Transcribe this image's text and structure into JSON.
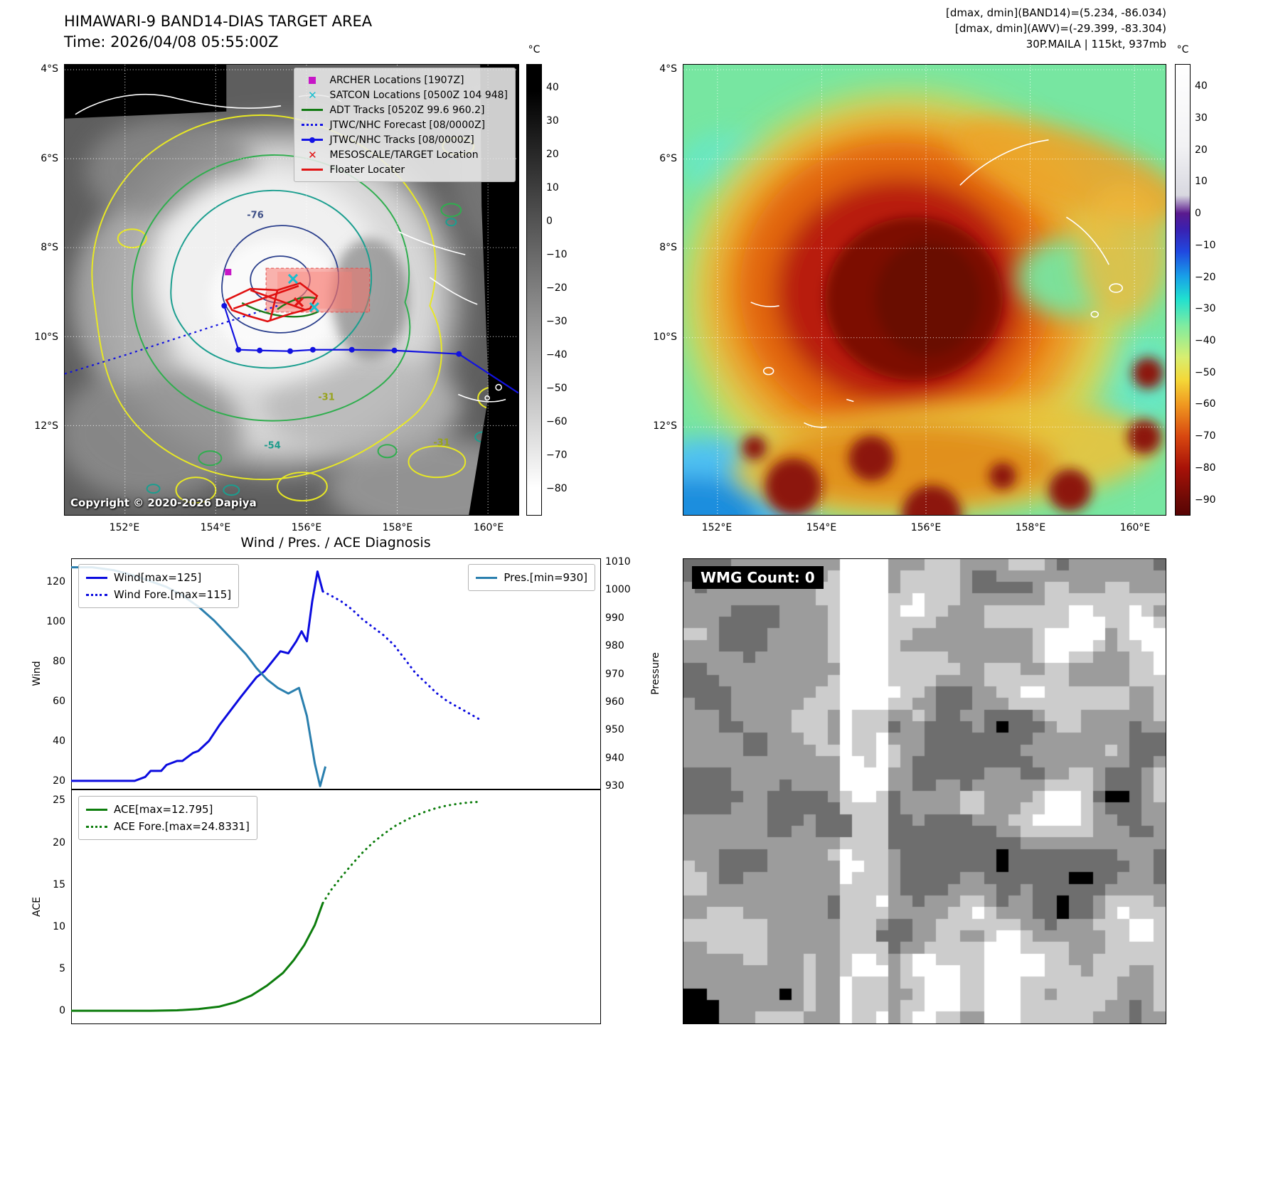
{
  "figure": {
    "band14": {
      "title": "HIMAWARI-9 BAND14-DIAS TARGET AREA",
      "time": "Time: 2026/04/08 05:55:00Z",
      "copyright": "Copyright © 2020-2026 Dapiya",
      "x_ticks": [
        "152°E",
        "154°E",
        "156°E",
        "158°E",
        "160°E"
      ],
      "y_ticks": [
        "4°S",
        "6°S",
        "8°S",
        "10°S",
        "12°S"
      ],
      "colorbar_unit": "°C",
      "colorbar_ticks": [
        40,
        30,
        20,
        10,
        0,
        -10,
        -20,
        -30,
        -40,
        -50,
        -60,
        -70,
        -80
      ],
      "legend": [
        {
          "label": "ARCHER Locations [1907Z]",
          "marker": "square",
          "color": "#c716c7"
        },
        {
          "label": "SATCON Locations [0500Z 104 948]",
          "marker": "x",
          "color": "#17becf"
        },
        {
          "label": "ADT Tracks [0520Z 99.6 960.2]",
          "marker": "line",
          "color": "#127a12"
        },
        {
          "label": "JTWC/NHC Forecast [08/0000Z]",
          "marker": "dotted",
          "color": "#1414e6"
        },
        {
          "label": "JTWC/NHC Tracks [08/0000Z]",
          "marker": "line-dot",
          "color": "#1414e6"
        },
        {
          "label": "MESOSCALE/TARGET Location",
          "marker": "x",
          "color": "#e01414"
        },
        {
          "label": "Floater Locater",
          "marker": "line",
          "color": "#e01414"
        }
      ],
      "contour_labels": [
        {
          "text": "-76",
          "color": "#3d4e86"
        },
        {
          "text": "-31",
          "color": "#97a31c"
        },
        {
          "text": "-54",
          "color": "#1f9c8c"
        },
        {
          "text": "-31",
          "color": "#97a31c"
        }
      ]
    },
    "awv": {
      "header": [
        "[dmax, dmin](BAND14)=(5.234, -86.034)",
        "[dmax, dmin](AWV)=(-29.399, -83.304)",
        "30P.MAILA | 115kt, 937mb"
      ],
      "x_ticks": [
        "152°E",
        "154°E",
        "156°E",
        "158°E",
        "160°E"
      ],
      "y_ticks": [
        "4°S",
        "6°S",
        "8°S",
        "10°S",
        "12°S"
      ],
      "colorbar_unit": "°C",
      "colorbar_ticks": [
        40,
        30,
        20,
        10,
        0,
        -10,
        -20,
        -30,
        -40,
        -50,
        -60,
        -70,
        -80,
        -90
      ]
    },
    "wmg": {
      "label": "WMG Count: 0"
    }
  },
  "chart_data": [
    {
      "type": "line",
      "title": "Wind / Pres. / ACE Diagnosis",
      "xlim": [
        0,
        100
      ],
      "grid": false,
      "legend_position": "upper left / upper right",
      "axes": {
        "left": {
          "label": "Wind",
          "range": [
            15.7,
            131.6
          ],
          "ticks": [
            20,
            40,
            60,
            80,
            100,
            120
          ]
        },
        "right": {
          "label": "Pressure",
          "range": [
            928.8,
            1011.2
          ],
          "ticks": [
            930,
            940,
            950,
            960,
            970,
            980,
            990,
            1000,
            1010
          ]
        }
      },
      "series": [
        {
          "name": "Wind[max=125]",
          "axis": "left",
          "color": "#0b0bdf",
          "style": "solid",
          "x": [
            0,
            12,
            14,
            15,
            17,
            18,
            20,
            21,
            23,
            24,
            26,
            28,
            30,
            32,
            33.5,
            35,
            36.5,
            38,
            39.5,
            41,
            42.5,
            43.5,
            44.5,
            45.5,
            46.5,
            47.5
          ],
          "y": [
            20,
            20,
            22,
            25,
            25,
            28,
            30,
            30,
            34,
            35,
            40,
            48,
            55,
            62,
            67,
            72,
            75,
            80,
            85,
            84,
            90,
            95,
            90,
            110,
            125,
            115
          ]
        },
        {
          "name": "Wind Fore.[max=115]",
          "axis": "left",
          "color": "#0b0bdf",
          "style": "dotted",
          "x": [
            47.5,
            49,
            51,
            53,
            55,
            57,
            59,
            61,
            63,
            65,
            67,
            69,
            71,
            73,
            75,
            77
          ],
          "y": [
            115,
            113,
            110,
            106,
            101,
            97,
            93,
            88,
            81,
            74,
            69,
            64,
            60,
            57,
            54,
            51
          ]
        },
        {
          "name": "Pres.[min=930]",
          "axis": "right",
          "color": "#2a7fae",
          "style": "solid",
          "x": [
            0,
            4,
            8,
            12,
            15,
            18,
            21,
            24,
            27,
            30,
            33,
            35,
            37,
            39,
            41,
            43,
            44.5,
            46,
            47,
            48
          ],
          "y": [
            1008,
            1008,
            1007,
            1005,
            1003,
            1001,
            998,
            994,
            989,
            983,
            977,
            972,
            968,
            965,
            963,
            965,
            955,
            938,
            930,
            937
          ]
        }
      ]
    },
    {
      "type": "line",
      "title": "",
      "xlim": [
        0,
        100
      ],
      "grid": false,
      "legend_position": "upper left",
      "axes": {
        "left": {
          "label": "ACE",
          "range": [
            -1.6,
            26.3
          ],
          "ticks": [
            0,
            5,
            10,
            15,
            20,
            25
          ]
        }
      },
      "series": [
        {
          "name": "ACE[max=12.795]",
          "axis": "left",
          "color": "#0d7d0d",
          "style": "solid",
          "x": [
            0,
            15,
            20,
            24,
            28,
            31,
            34,
            37,
            40,
            42,
            44,
            46,
            47.5
          ],
          "y": [
            0,
            0,
            0.05,
            0.2,
            0.5,
            1.0,
            1.8,
            3.0,
            4.5,
            6.0,
            7.8,
            10.2,
            12.795
          ]
        },
        {
          "name": "ACE Fore.[max=24.8331]",
          "axis": "left",
          "color": "#0d7d0d",
          "style": "dotted",
          "x": [
            47.5,
            49,
            51,
            53,
            55,
            57,
            59,
            61,
            63,
            65,
            67,
            69,
            71,
            73,
            75,
            77
          ],
          "y": [
            12.795,
            14.3,
            15.9,
            17.4,
            18.8,
            20.0,
            21.0,
            21.9,
            22.6,
            23.2,
            23.7,
            24.1,
            24.4,
            24.6,
            24.75,
            24.8331
          ]
        }
      ]
    }
  ]
}
